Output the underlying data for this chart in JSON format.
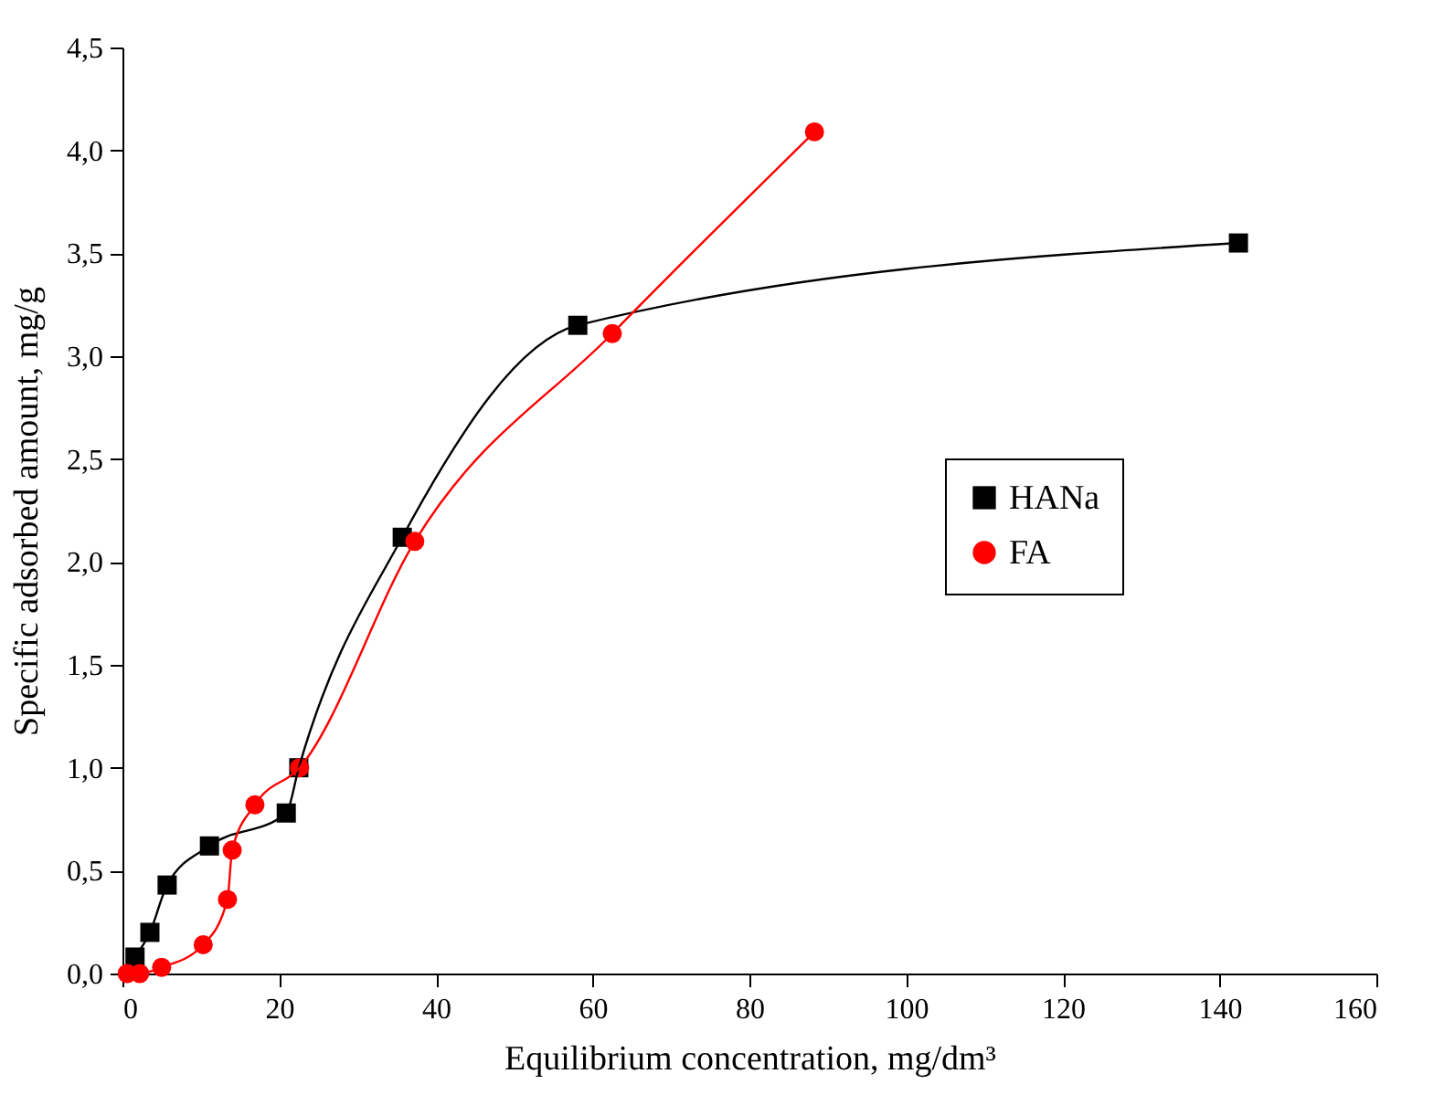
{
  "chart_data": {
    "type": "line",
    "xlabel": "Equilibrium concentration, mg/dm³",
    "ylabel": "Specific adsorbed amount, mg/g",
    "xlim": [
      0,
      160
    ],
    "xticks": [
      0,
      20,
      40,
      60,
      80,
      100,
      120,
      140,
      160
    ],
    "ylim": [
      0,
      4.5
    ],
    "yticks": [
      {
        "value": 0,
        "label": "0,0"
      },
      {
        "value": 0.5,
        "label": "0,5"
      },
      {
        "value": 1,
        "label": "1,0"
      },
      {
        "value": 1.5,
        "label": "1,5"
      },
      {
        "value": 2,
        "label": "2,0"
      },
      {
        "value": 2.5,
        "label": "2,5"
      },
      {
        "value": 3,
        "label": "3,0"
      },
      {
        "value": 3.5,
        "label": "3,5"
      },
      {
        "value": 4,
        "label": "4,0"
      },
      {
        "value": 4.5,
        "label": "4,5"
      }
    ],
    "grid": false,
    "legend": "right",
    "series": [
      {
        "name": "HANa",
        "color": "#000000",
        "marker": "square",
        "x": [
          1.6,
          3.5,
          5.7,
          11.1,
          20.9,
          22.5,
          35.7,
          58.1,
          142.4
        ],
        "values": [
          0.08,
          0.2,
          0.43,
          0.62,
          0.78,
          1.0,
          2.12,
          3.15,
          3.55
        ]
      },
      {
        "name": "FA",
        "color": "#ff0000",
        "marker": "circle",
        "x": [
          0.6,
          2.2,
          5.0,
          10.3,
          13.4,
          14.0,
          16.9,
          22.6,
          37.3,
          62.5,
          88.3
        ],
        "values": [
          0.0,
          0.0,
          0.03,
          0.14,
          0.36,
          0.6,
          0.82,
          1.0,
          2.1,
          3.11,
          4.09
        ]
      }
    ]
  }
}
